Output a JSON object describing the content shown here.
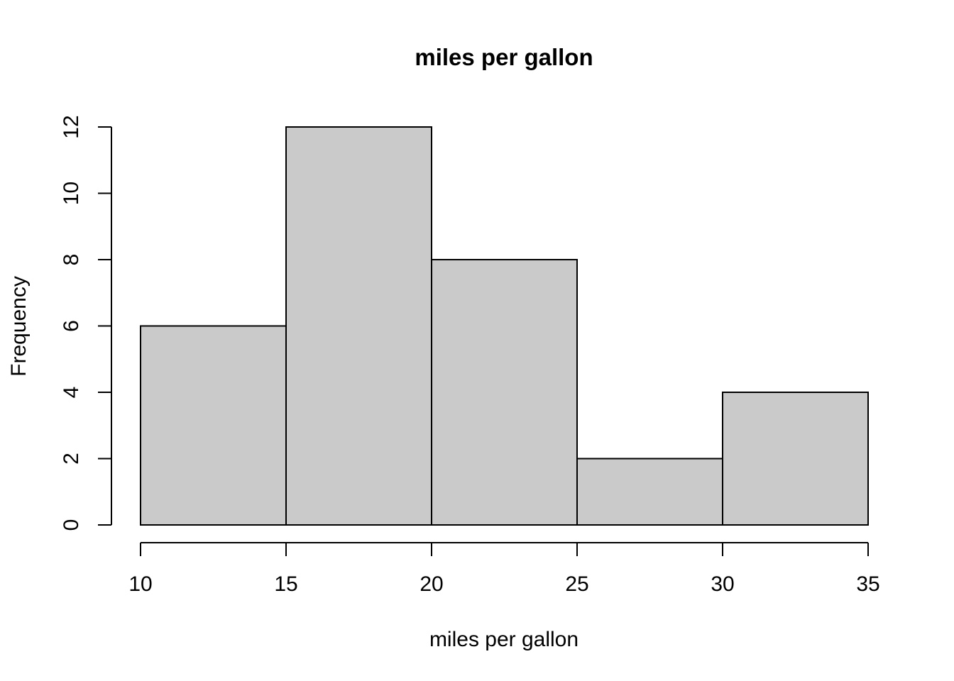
{
  "figure": {
    "title": "miles per gallon"
  },
  "chart_data": {
    "type": "bar",
    "subtype": "histogram",
    "title": "miles per gallon",
    "xlabel": "miles per gallon",
    "ylabel": "Frequency",
    "bin_edges": [
      10,
      15,
      20,
      25,
      30,
      35
    ],
    "counts": [
      6,
      12,
      8,
      2,
      4
    ],
    "bins": [
      {
        "range": "10-15",
        "frequency": 6
      },
      {
        "range": "15-20",
        "frequency": 12
      },
      {
        "range": "20-25",
        "frequency": 8
      },
      {
        "range": "25-30",
        "frequency": 2
      },
      {
        "range": "30-35",
        "frequency": 4
      }
    ],
    "x_ticks": [
      "10",
      "15",
      "20",
      "25",
      "30",
      "35"
    ],
    "y_ticks": [
      "0",
      "2",
      "4",
      "6",
      "8",
      "10",
      "12"
    ],
    "xlim": [
      10,
      35
    ],
    "ylim": [
      0,
      12
    ],
    "grid": false,
    "legend": false,
    "colors": {
      "bar_fill": "#cacaca",
      "bar_border": "#000000",
      "axis": "#000000",
      "text": "#000000",
      "background": "#ffffff"
    }
  }
}
